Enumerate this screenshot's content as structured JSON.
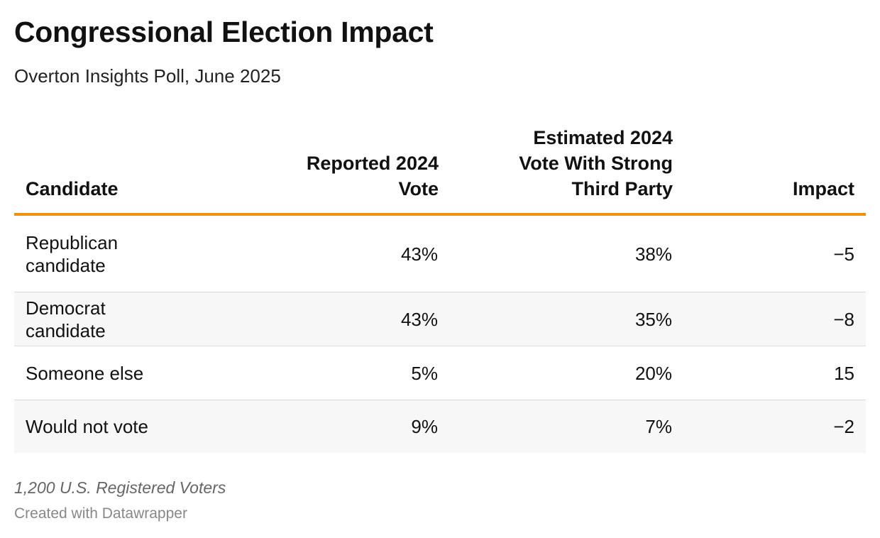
{
  "title": "Congressional Election Impact",
  "subtitle": "Overton Insights Poll, June 2025",
  "colors": {
    "header_rule": "#f0900d",
    "row_alt": "#f7f7f7",
    "row_divider": "#dcdcdc"
  },
  "chart_data": {
    "type": "table",
    "title": "Congressional Election Impact",
    "subtitle": "Overton Insights Poll, June 2025",
    "columns": [
      "Candidate",
      "Reported 2024 Vote",
      "Estimated 2024 Vote With Strong Third Party",
      "Impact"
    ],
    "rows": [
      {
        "candidate": "Republican candidate",
        "reported": "43%",
        "estimated": "38%",
        "impact": "−5"
      },
      {
        "candidate": "Democrat candidate",
        "reported": "43%",
        "estimated": "35%",
        "impact": "−8"
      },
      {
        "candidate": "Someone else",
        "reported": "5%",
        "estimated": "20%",
        "impact": "15"
      },
      {
        "candidate": "Would not vote",
        "reported": "9%",
        "estimated": "7%",
        "impact": "−2"
      }
    ],
    "notes": "1,200 U.S. Registered Voters"
  },
  "footer": {
    "credit": "Created with Datawrapper"
  }
}
